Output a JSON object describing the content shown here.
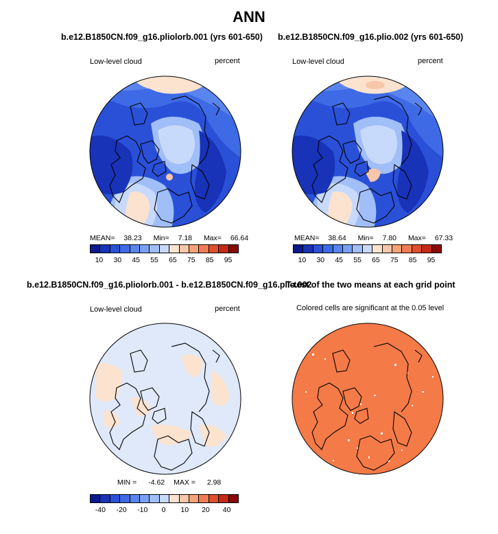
{
  "title": "ANN",
  "panels": [
    {
      "id": "p1",
      "title": "b.e12.B1850CN.f09_g16.pliolorb.001 (yrs 601-650)",
      "variable": "Low-level cloud",
      "units": "percent",
      "stats": {
        "mean_label": "MEAN=",
        "mean": "38.23",
        "min_label": "Min=",
        "min": "7.18",
        "max_label": "Max=",
        "max": "66.64"
      },
      "colorbar": {
        "colors": [
          "#0a1a8c",
          "#1832b8",
          "#2a50d8",
          "#3e6ae6",
          "#5a84ee",
          "#7aa0f4",
          "#a0bef8",
          "#c8dafc",
          "#fbe3d0",
          "#f8c6a8",
          "#f5a27a",
          "#f07c55",
          "#e0502e",
          "#c42a18",
          "#8a0a0a"
        ],
        "ticks": [
          "10",
          "30",
          "45",
          "55",
          "65",
          "75",
          "85",
          "95"
        ]
      }
    },
    {
      "id": "p2",
      "title": "b.e12.B1850CN.f09_g16.plio.002 (yrs 601-650)",
      "variable": "Low-level cloud",
      "units": "percent",
      "stats": {
        "mean_label": "MEAN=",
        "mean": "38.64",
        "min_label": "Min=",
        "min": "7.80",
        "max_label": "Max=",
        "max": "67.33"
      },
      "colorbar": {
        "colors": [
          "#0a1a8c",
          "#1832b8",
          "#2a50d8",
          "#3e6ae6",
          "#5a84ee",
          "#7aa0f4",
          "#a0bef8",
          "#c8dafc",
          "#fbe3d0",
          "#f8c6a8",
          "#f5a27a",
          "#f07c55",
          "#e0502e",
          "#c42a18",
          "#8a0a0a"
        ],
        "ticks": [
          "10",
          "30",
          "45",
          "55",
          "65",
          "75",
          "85",
          "95"
        ]
      }
    },
    {
      "id": "p3",
      "title": "b.e12.B1850CN.f09_g16.pliolorb.001 - b.e12.B1850CN.f09_g16.plio.002",
      "variable": "Low-level cloud",
      "units": "percent",
      "stats": {
        "min_label": "MIN =",
        "min": "-4.62",
        "max_label": "MAX =",
        "max": "2.98"
      },
      "colorbar": {
        "colors": [
          "#0a1a8c",
          "#1832b8",
          "#2a50d8",
          "#3e6ae6",
          "#5a84ee",
          "#7aa0f4",
          "#a0bef8",
          "#c8dafc",
          "#fbe3d0",
          "#f8c6a8",
          "#f5a27a",
          "#f07c55",
          "#e0502e",
          "#c42a18",
          "#8a0a0a"
        ],
        "ticks": [
          "-40",
          "-20",
          "-10",
          "0",
          "10",
          "20",
          "40"
        ]
      }
    },
    {
      "id": "p4",
      "title": "T-test of the two means at each grid point",
      "subtitle": "Colored cells are significant at the 0.05 level"
    }
  ],
  "colors": {
    "p1_ocean": "#3a64dc",
    "p3_fill": "#dfe9f9",
    "p4_fill": "#f47a48"
  }
}
